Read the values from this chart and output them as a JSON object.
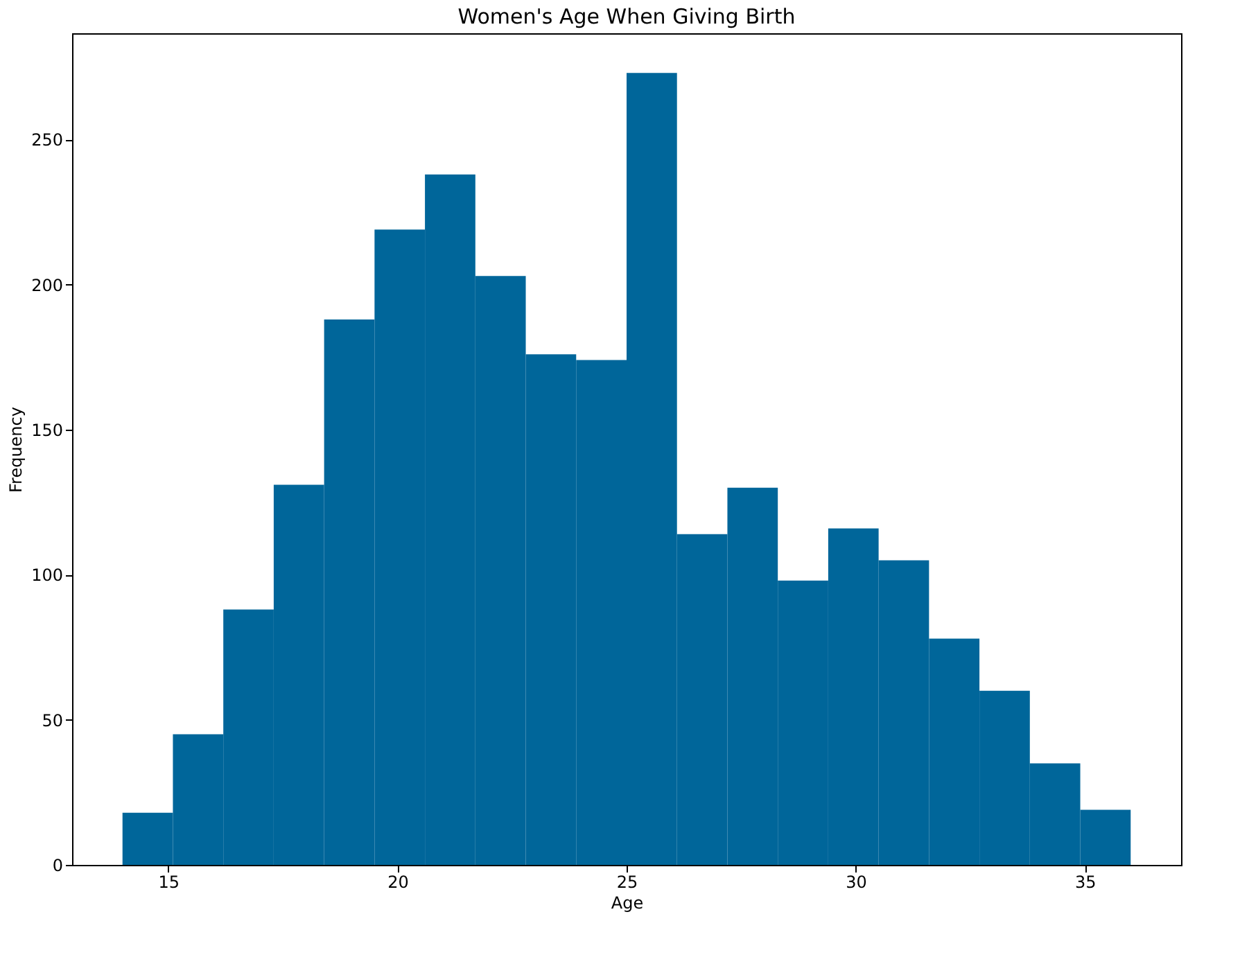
{
  "chart_data": {
    "type": "histogram",
    "title": "Women's Age When Giving Birth",
    "xlabel": "Age",
    "ylabel": "Frequency",
    "bins": [
      14,
      15.1,
      16.2,
      17.3,
      18.4,
      19.5,
      20.6,
      21.7,
      22.8,
      23.9,
      25,
      26.1,
      27.2,
      28.3,
      29.4,
      30.5,
      31.6,
      32.7,
      33.8,
      34.9,
      36
    ],
    "values": [
      18,
      45,
      88,
      131,
      188,
      219,
      238,
      203,
      176,
      174,
      273,
      114,
      130,
      98,
      116,
      105,
      78,
      60,
      35,
      19
    ],
    "color": "#00669a",
    "xlim": [
      12.9,
      37.1
    ],
    "ylim": [
      0,
      286.65
    ],
    "xticks": [
      15,
      20,
      25,
      30,
      35
    ],
    "yticks": [
      0,
      50,
      100,
      150,
      200,
      250
    ],
    "grid": false
  }
}
